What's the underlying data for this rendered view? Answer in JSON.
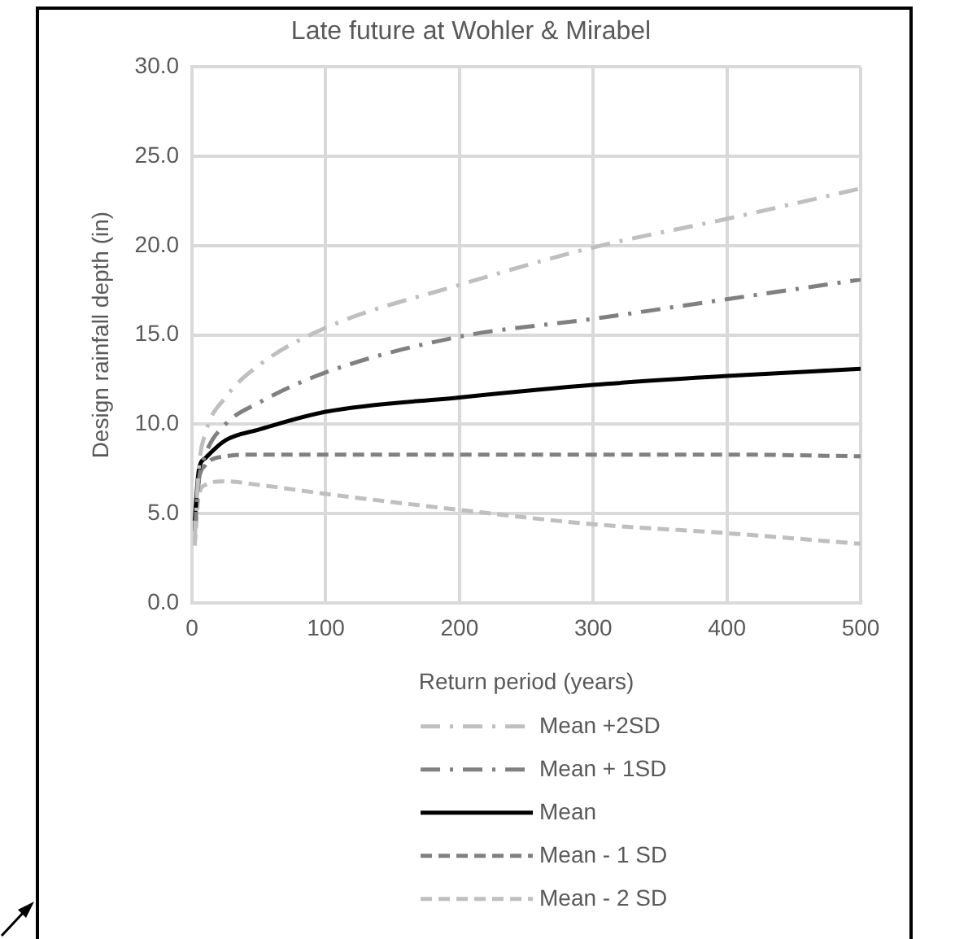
{
  "chart_data": {
    "type": "line",
    "title": "Late future at Wohler & Mirabel",
    "xlabel": "Return period (years)",
    "ylabel": "Design rainfall depth (in)",
    "x": [
      2,
      5,
      10,
      25,
      50,
      100,
      200,
      300,
      400,
      500
    ],
    "xlim": [
      0,
      500
    ],
    "xticks": [
      0,
      100,
      200,
      300,
      400,
      500
    ],
    "ylim": [
      0,
      30
    ],
    "yticks": [
      {
        "value": 0,
        "label": "0.0"
      },
      {
        "value": 5,
        "label": "5.0"
      },
      {
        "value": 10,
        "label": "10.0"
      },
      {
        "value": 15,
        "label": "15.0"
      },
      {
        "value": 20,
        "label": "20.0"
      },
      {
        "value": 25,
        "label": "25.0"
      },
      {
        "value": 30,
        "label": "30.0"
      }
    ],
    "grid": true,
    "legend": "bottom",
    "marker": "none",
    "series": [
      {
        "name": "Mean +2SD",
        "color": "#bfbfbf",
        "line_style": "dashdot",
        "values": [
          3.5,
          7.5,
          9.5,
          11.5,
          13.3,
          15.4,
          17.8,
          19.9,
          21.5,
          23.2
        ]
      },
      {
        "name": "Mean + 1SD",
        "color": "#808080",
        "line_style": "dashdot",
        "values": [
          4.0,
          6.8,
          8.3,
          10.0,
          11.2,
          12.9,
          14.9,
          15.9,
          17.0,
          18.1
        ]
      },
      {
        "name": "Mean",
        "color": "#000000",
        "line_style": "solid",
        "values": [
          4.6,
          7.4,
          8.1,
          9.1,
          9.7,
          10.7,
          11.5,
          12.2,
          12.7,
          13.1
        ]
      },
      {
        "name": "Mean - 1 SD",
        "color": "#808080",
        "line_style": "dashed",
        "values": [
          4.2,
          6.8,
          7.7,
          8.2,
          8.3,
          8.3,
          8.3,
          8.3,
          8.3,
          8.2
        ]
      },
      {
        "name": "Mean - 2 SD",
        "color": "#bfbfbf",
        "line_style": "dashed",
        "values": [
          3.2,
          6.0,
          6.6,
          6.8,
          6.6,
          6.1,
          5.2,
          4.4,
          3.9,
          3.3
        ]
      }
    ]
  }
}
